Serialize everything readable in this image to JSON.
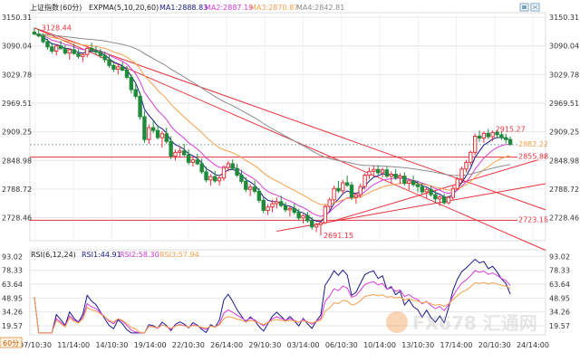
{
  "header": {
    "symbol": "上证指数",
    "period": "(60分)",
    "indicator": "EXPMA(5,10,20,60)",
    "ma1": "MA1:2888.83",
    "ma2": "MA2:2887.19",
    "ma3": "MA3:2870.87",
    "ma4": "MA4:2842.81"
  },
  "rsi_header": {
    "indicator": "RSI(6,12,24)",
    "rsi1": "RSI1:44.91",
    "rsi2": "RSI2:58.30",
    "rsi3": "RSI3:57.94"
  },
  "period_button": "60分",
  "watermark": "FX678 汇通网",
  "colors": {
    "candle_up": "#e6323c",
    "candle_down": "#1f8a3a",
    "ma1": "#1a1a8c",
    "ma2": "#d63cd6",
    "ma3": "#f5a04a",
    "ma4": "#8c8c8c",
    "rsi1": "#1a1a8c",
    "rsi2": "#d63cd6",
    "rsi3": "#f5a04a",
    "trend_line": "#e6323c",
    "grid": "#e6e6e6"
  },
  "chart_data": {
    "type": "candlestick",
    "price_axis": [
      "3150.31",
      "3090.04",
      "3029.78",
      "2969.51",
      "2909.25",
      "2848.98",
      "2788.72",
      "2728.46"
    ],
    "price_axis_values": [
      3150.31,
      3090.04,
      3029.78,
      2969.51,
      2909.25,
      2848.98,
      2788.72,
      2728.46
    ],
    "ylim": [
      2680,
      3160
    ],
    "x_labels": [
      "07/10:30",
      "11/14:00",
      "14/10:30",
      "19/14:00",
      "22/10:30",
      "26/14:00",
      "29/10:30",
      "03/14:00",
      "06/10:30",
      "10/14:00",
      "13/10:30",
      "17/14:00",
      "20/10:30",
      "24/14:00"
    ],
    "annotations": [
      {
        "label": "3128.44",
        "value": 3128.44,
        "index": 1
      },
      {
        "label": "2691.15",
        "value": 2691.15,
        "index": 65
      },
      {
        "label": "2915.27",
        "value": 2915.27,
        "index": 104
      }
    ],
    "price_tags": [
      {
        "label": "2882.22",
        "value": 2882.22,
        "color": "#f5a04a"
      },
      {
        "label": "2855.88",
        "value": 2855.88,
        "color": "#e6323c"
      },
      {
        "label": "2723.15",
        "value": 2723.15,
        "color": "#e6323c"
      }
    ],
    "horizontal_lines": [
      2855.88,
      2723.15
    ],
    "trend_lines": [
      {
        "from": [
          0,
          3128
        ],
        "to": [
          120,
          2660
        ]
      },
      {
        "from": [
          0,
          3128
        ],
        "to": [
          120,
          2745
        ]
      },
      {
        "from": [
          55,
          2700
        ],
        "to": [
          118,
          2800
        ]
      },
      {
        "from": [
          68,
          2722
        ],
        "to": [
          118,
          2855
        ]
      }
    ],
    "candles": [
      [
        3119,
        3128,
        3113,
        3115
      ],
      [
        3115,
        3126,
        3108,
        3111
      ],
      [
        3111,
        3116,
        3095,
        3099
      ],
      [
        3099,
        3105,
        3082,
        3088
      ],
      [
        3088,
        3097,
        3074,
        3079
      ],
      [
        3079,
        3094,
        3070,
        3090
      ],
      [
        3090,
        3101,
        3083,
        3084
      ],
      [
        3084,
        3092,
        3071,
        3075
      ],
      [
        3075,
        3086,
        3061,
        3082
      ],
      [
        3082,
        3095,
        3072,
        3074
      ],
      [
        3074,
        3083,
        3063,
        3068
      ],
      [
        3068,
        3076,
        3056,
        3072
      ],
      [
        3072,
        3089,
        3066,
        3085
      ],
      [
        3085,
        3097,
        3077,
        3080
      ],
      [
        3080,
        3090,
        3071,
        3077
      ],
      [
        3077,
        3084,
        3064,
        3070
      ],
      [
        3070,
        3078,
        3055,
        3061
      ],
      [
        3061,
        3070,
        3044,
        3049
      ],
      [
        3049,
        3058,
        3035,
        3041
      ],
      [
        3041,
        3052,
        3030,
        3046
      ],
      [
        3046,
        3056,
        3037,
        3039
      ],
      [
        3039,
        3048,
        3020,
        3024
      ],
      [
        3024,
        3030,
        2990,
        2998
      ],
      [
        2998,
        3012,
        2978,
        2984
      ],
      [
        2984,
        2993,
        2935,
        2941
      ],
      [
        2941,
        2953,
        2886,
        2893
      ],
      [
        2893,
        2925,
        2884,
        2918
      ],
      [
        2918,
        2933,
        2906,
        2912
      ],
      [
        2912,
        2924,
        2893,
        2897
      ],
      [
        2897,
        2911,
        2876,
        2905
      ],
      [
        2905,
        2918,
        2884,
        2889
      ],
      [
        2889,
        2900,
        2852,
        2858
      ],
      [
        2858,
        2872,
        2849,
        2866
      ],
      [
        2866,
        2879,
        2856,
        2869
      ],
      [
        2869,
        2884,
        2858,
        2861
      ],
      [
        2861,
        2872,
        2840,
        2845
      ],
      [
        2845,
        2857,
        2836,
        2850
      ],
      [
        2850,
        2863,
        2839,
        2842
      ],
      [
        2842,
        2853,
        2820,
        2825
      ],
      [
        2825,
        2836,
        2803,
        2808
      ],
      [
        2808,
        2820,
        2796,
        2815
      ],
      [
        2815,
        2827,
        2802,
        2806
      ],
      [
        2806,
        2818,
        2796,
        2812
      ],
      [
        2812,
        2839,
        2806,
        2834
      ],
      [
        2834,
        2848,
        2826,
        2842
      ],
      [
        2842,
        2851,
        2829,
        2832
      ],
      [
        2832,
        2842,
        2814,
        2818
      ],
      [
        2818,
        2829,
        2800,
        2805
      ],
      [
        2805,
        2814,
        2782,
        2788
      ],
      [
        2788,
        2799,
        2774,
        2793
      ],
      [
        2793,
        2806,
        2780,
        2784
      ],
      [
        2784,
        2791,
        2760,
        2765
      ],
      [
        2765,
        2772,
        2738,
        2744
      ],
      [
        2744,
        2757,
        2734,
        2751
      ],
      [
        2751,
        2766,
        2740,
        2758
      ],
      [
        2758,
        2771,
        2748,
        2762
      ],
      [
        2762,
        2775,
        2750,
        2754
      ],
      [
        2754,
        2761,
        2740,
        2745
      ],
      [
        2745,
        2753,
        2731,
        2748
      ],
      [
        2748,
        2758,
        2735,
        2740
      ],
      [
        2740,
        2747,
        2722,
        2728
      ],
      [
        2728,
        2736,
        2716,
        2733
      ],
      [
        2733,
        2741,
        2718,
        2722
      ],
      [
        2722,
        2730,
        2703,
        2709
      ],
      [
        2709,
        2718,
        2698,
        2714
      ],
      [
        2714,
        2720,
        2691,
        2718
      ],
      [
        2718,
        2757,
        2715,
        2752
      ],
      [
        2752,
        2771,
        2745,
        2766
      ],
      [
        2766,
        2796,
        2760,
        2790
      ],
      [
        2790,
        2806,
        2780,
        2785
      ],
      [
        2785,
        2808,
        2779,
        2802
      ],
      [
        2802,
        2817,
        2793,
        2797
      ],
      [
        2797,
        2804,
        2766,
        2772
      ],
      [
        2772,
        2781,
        2758,
        2777
      ],
      [
        2777,
        2800,
        2770,
        2794
      ],
      [
        2794,
        2822,
        2788,
        2818
      ],
      [
        2818,
        2834,
        2810,
        2826
      ],
      [
        2826,
        2838,
        2815,
        2830
      ],
      [
        2830,
        2839,
        2818,
        2823
      ],
      [
        2823,
        2834,
        2813,
        2829
      ],
      [
        2829,
        2836,
        2812,
        2816
      ],
      [
        2816,
        2826,
        2801,
        2820
      ],
      [
        2820,
        2831,
        2808,
        2812
      ],
      [
        2812,
        2822,
        2799,
        2816
      ],
      [
        2816,
        2824,
        2796,
        2801
      ],
      [
        2801,
        2810,
        2787,
        2806
      ],
      [
        2806,
        2817,
        2794,
        2798
      ],
      [
        2798,
        2806,
        2782,
        2794
      ],
      [
        2794,
        2802,
        2778,
        2783
      ],
      [
        2783,
        2793,
        2770,
        2788
      ],
      [
        2788,
        2796,
        2773,
        2777
      ],
      [
        2777,
        2785,
        2760,
        2768
      ],
      [
        2768,
        2776,
        2753,
        2772
      ],
      [
        2772,
        2779,
        2756,
        2760
      ],
      [
        2760,
        2775,
        2756,
        2771
      ],
      [
        2771,
        2796,
        2766,
        2790
      ],
      [
        2790,
        2814,
        2785,
        2810
      ],
      [
        2810,
        2836,
        2804,
        2831
      ],
      [
        2831,
        2850,
        2824,
        2845
      ],
      [
        2845,
        2870,
        2838,
        2866
      ],
      [
        2866,
        2905,
        2860,
        2900
      ],
      [
        2900,
        2912,
        2888,
        2896
      ],
      [
        2896,
        2910,
        2886,
        2906
      ],
      [
        2906,
        2915,
        2894,
        2899
      ],
      [
        2899,
        2912,
        2889,
        2908
      ],
      [
        2908,
        2914,
        2897,
        2903
      ],
      [
        2903,
        2911,
        2892,
        2897
      ],
      [
        2897,
        2905,
        2885,
        2893
      ],
      [
        2893,
        2899,
        2880,
        2883
      ]
    ],
    "rsi": {
      "ylim": [
        10,
        100
      ],
      "axis": [
        "93.02",
        "78.33",
        "63.64",
        "48.95",
        "34.26",
        "19.57"
      ],
      "axis_values": [
        93.02,
        78.33,
        63.64,
        48.95,
        34.26,
        19.57
      ]
    }
  }
}
